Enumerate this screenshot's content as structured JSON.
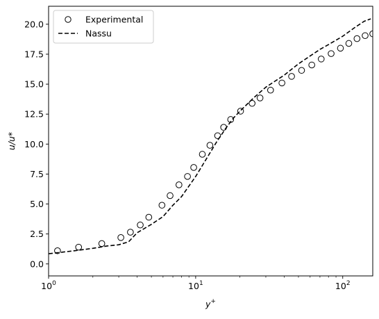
{
  "chart_data": {
    "type": "scatter",
    "x_scale": "log",
    "xlim": [
      1,
      160
    ],
    "ylim": [
      -1.0,
      21.5
    ],
    "xlabel_base": "y",
    "xlabel_sup": "+",
    "ylabel": "u/u*",
    "grid": false,
    "legend_position": "upper-left",
    "x_ticks": [
      {
        "value": 1,
        "base": "10",
        "exp": "0"
      },
      {
        "value": 10,
        "base": "10",
        "exp": "1"
      },
      {
        "value": 100,
        "base": "10",
        "exp": "2"
      }
    ],
    "y_ticks": [
      {
        "value": 0,
        "label": "0.0"
      },
      {
        "value": 2.5,
        "label": "2.5"
      },
      {
        "value": 5,
        "label": "5.0"
      },
      {
        "value": 7.5,
        "label": "7.5"
      },
      {
        "value": 10,
        "label": "10.0"
      },
      {
        "value": 12.5,
        "label": "12.5"
      },
      {
        "value": 15,
        "label": "15.0"
      },
      {
        "value": 17.5,
        "label": "17.5"
      },
      {
        "value": 20,
        "label": "20.0"
      }
    ],
    "series": [
      {
        "name": "Experimental",
        "style": "open-circle",
        "color": "#000000",
        "x": [
          1.15,
          1.6,
          2.3,
          3.1,
          3.6,
          4.2,
          4.8,
          5.9,
          6.7,
          7.7,
          8.8,
          9.7,
          11.1,
          12.5,
          14.1,
          15.5,
          17.3,
          20.2,
          24.2,
          27.4,
          32.3,
          38.6,
          44.9,
          52.5,
          61.6,
          71.4,
          83.4,
          96.5,
          110,
          125,
          142,
          160
        ],
        "y": [
          1.1,
          1.4,
          1.7,
          2.2,
          2.65,
          3.25,
          3.9,
          4.9,
          5.7,
          6.6,
          7.3,
          8.05,
          9.15,
          9.9,
          10.7,
          11.4,
          12.05,
          12.75,
          13.4,
          13.85,
          14.5,
          15.1,
          15.65,
          16.15,
          16.6,
          17.1,
          17.55,
          18.0,
          18.4,
          18.8,
          19.05,
          19.2
        ]
      },
      {
        "name": "Nassu",
        "style": "dashed-line",
        "color": "#000000",
        "x": [
          1.0,
          1.5,
          2.0,
          2.5,
          3.0,
          3.5,
          4.0,
          5.0,
          6.0,
          7.0,
          8.0,
          9.0,
          10.0,
          12.0,
          14.0,
          16.0,
          18.0,
          20.0,
          25.0,
          30.0,
          40.0,
          50.0,
          60.0,
          70.0,
          80.0,
          100.0,
          120.0,
          140.0,
          155.0
        ],
        "y": [
          0.85,
          1.1,
          1.3,
          1.5,
          1.6,
          1.85,
          2.6,
          3.3,
          3.95,
          4.9,
          5.6,
          6.5,
          7.3,
          8.9,
          10.25,
          11.3,
          12.15,
          12.75,
          13.9,
          14.75,
          15.75,
          16.7,
          17.35,
          17.9,
          18.3,
          19.0,
          19.7,
          20.25,
          20.45
        ]
      }
    ]
  }
}
